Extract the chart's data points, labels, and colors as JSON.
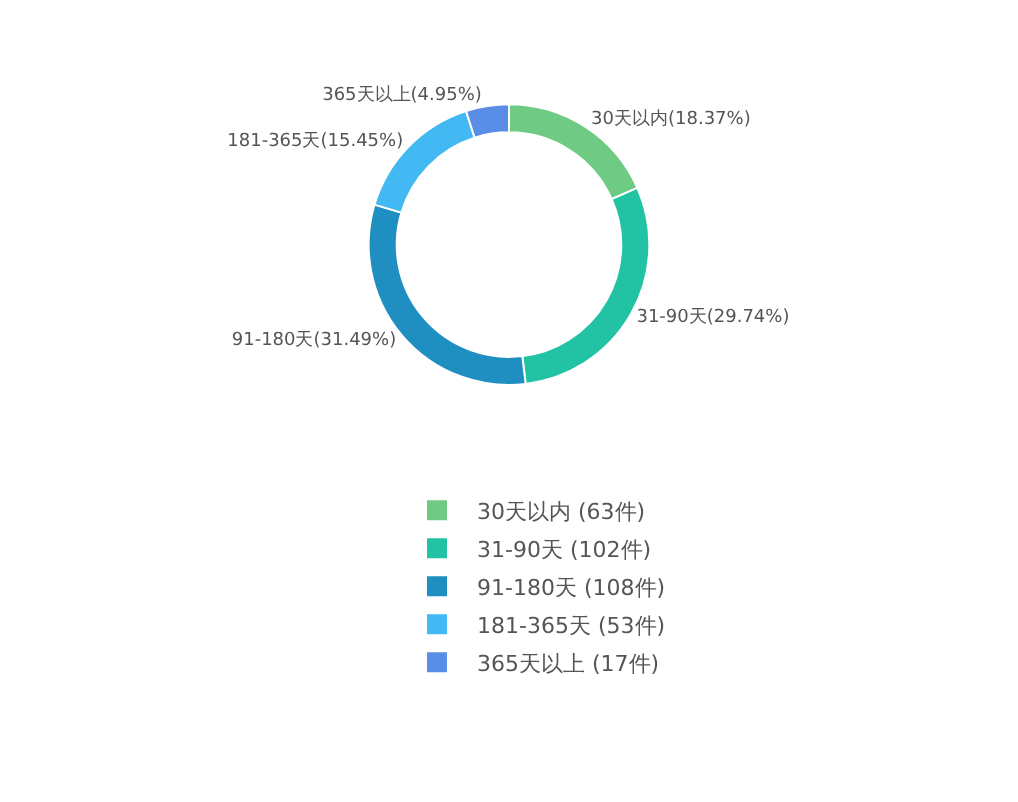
{
  "chart_data": {
    "type": "donut",
    "categories": [
      "30天以内 (63件)",
      "31-90天 (102件)",
      "91-180天 (108件)",
      "181-365天 (53件)",
      "365天以上 (17件)"
    ],
    "values": [
      18.37,
      29.74,
      31.49,
      15.45,
      4.95
    ],
    "value_labels": [
      "30天以内(18.37%)",
      "31-90天(29.74%)",
      "91-180天(31.49%)",
      "181-365天(15.45%)",
      "365天以上(4.95%)"
    ],
    "colors": [
      "#6fcb84",
      "#22c3a4",
      "#1f8fc2",
      "#42b9f2",
      "#5a8de6"
    ],
    "legend": "bottom"
  }
}
